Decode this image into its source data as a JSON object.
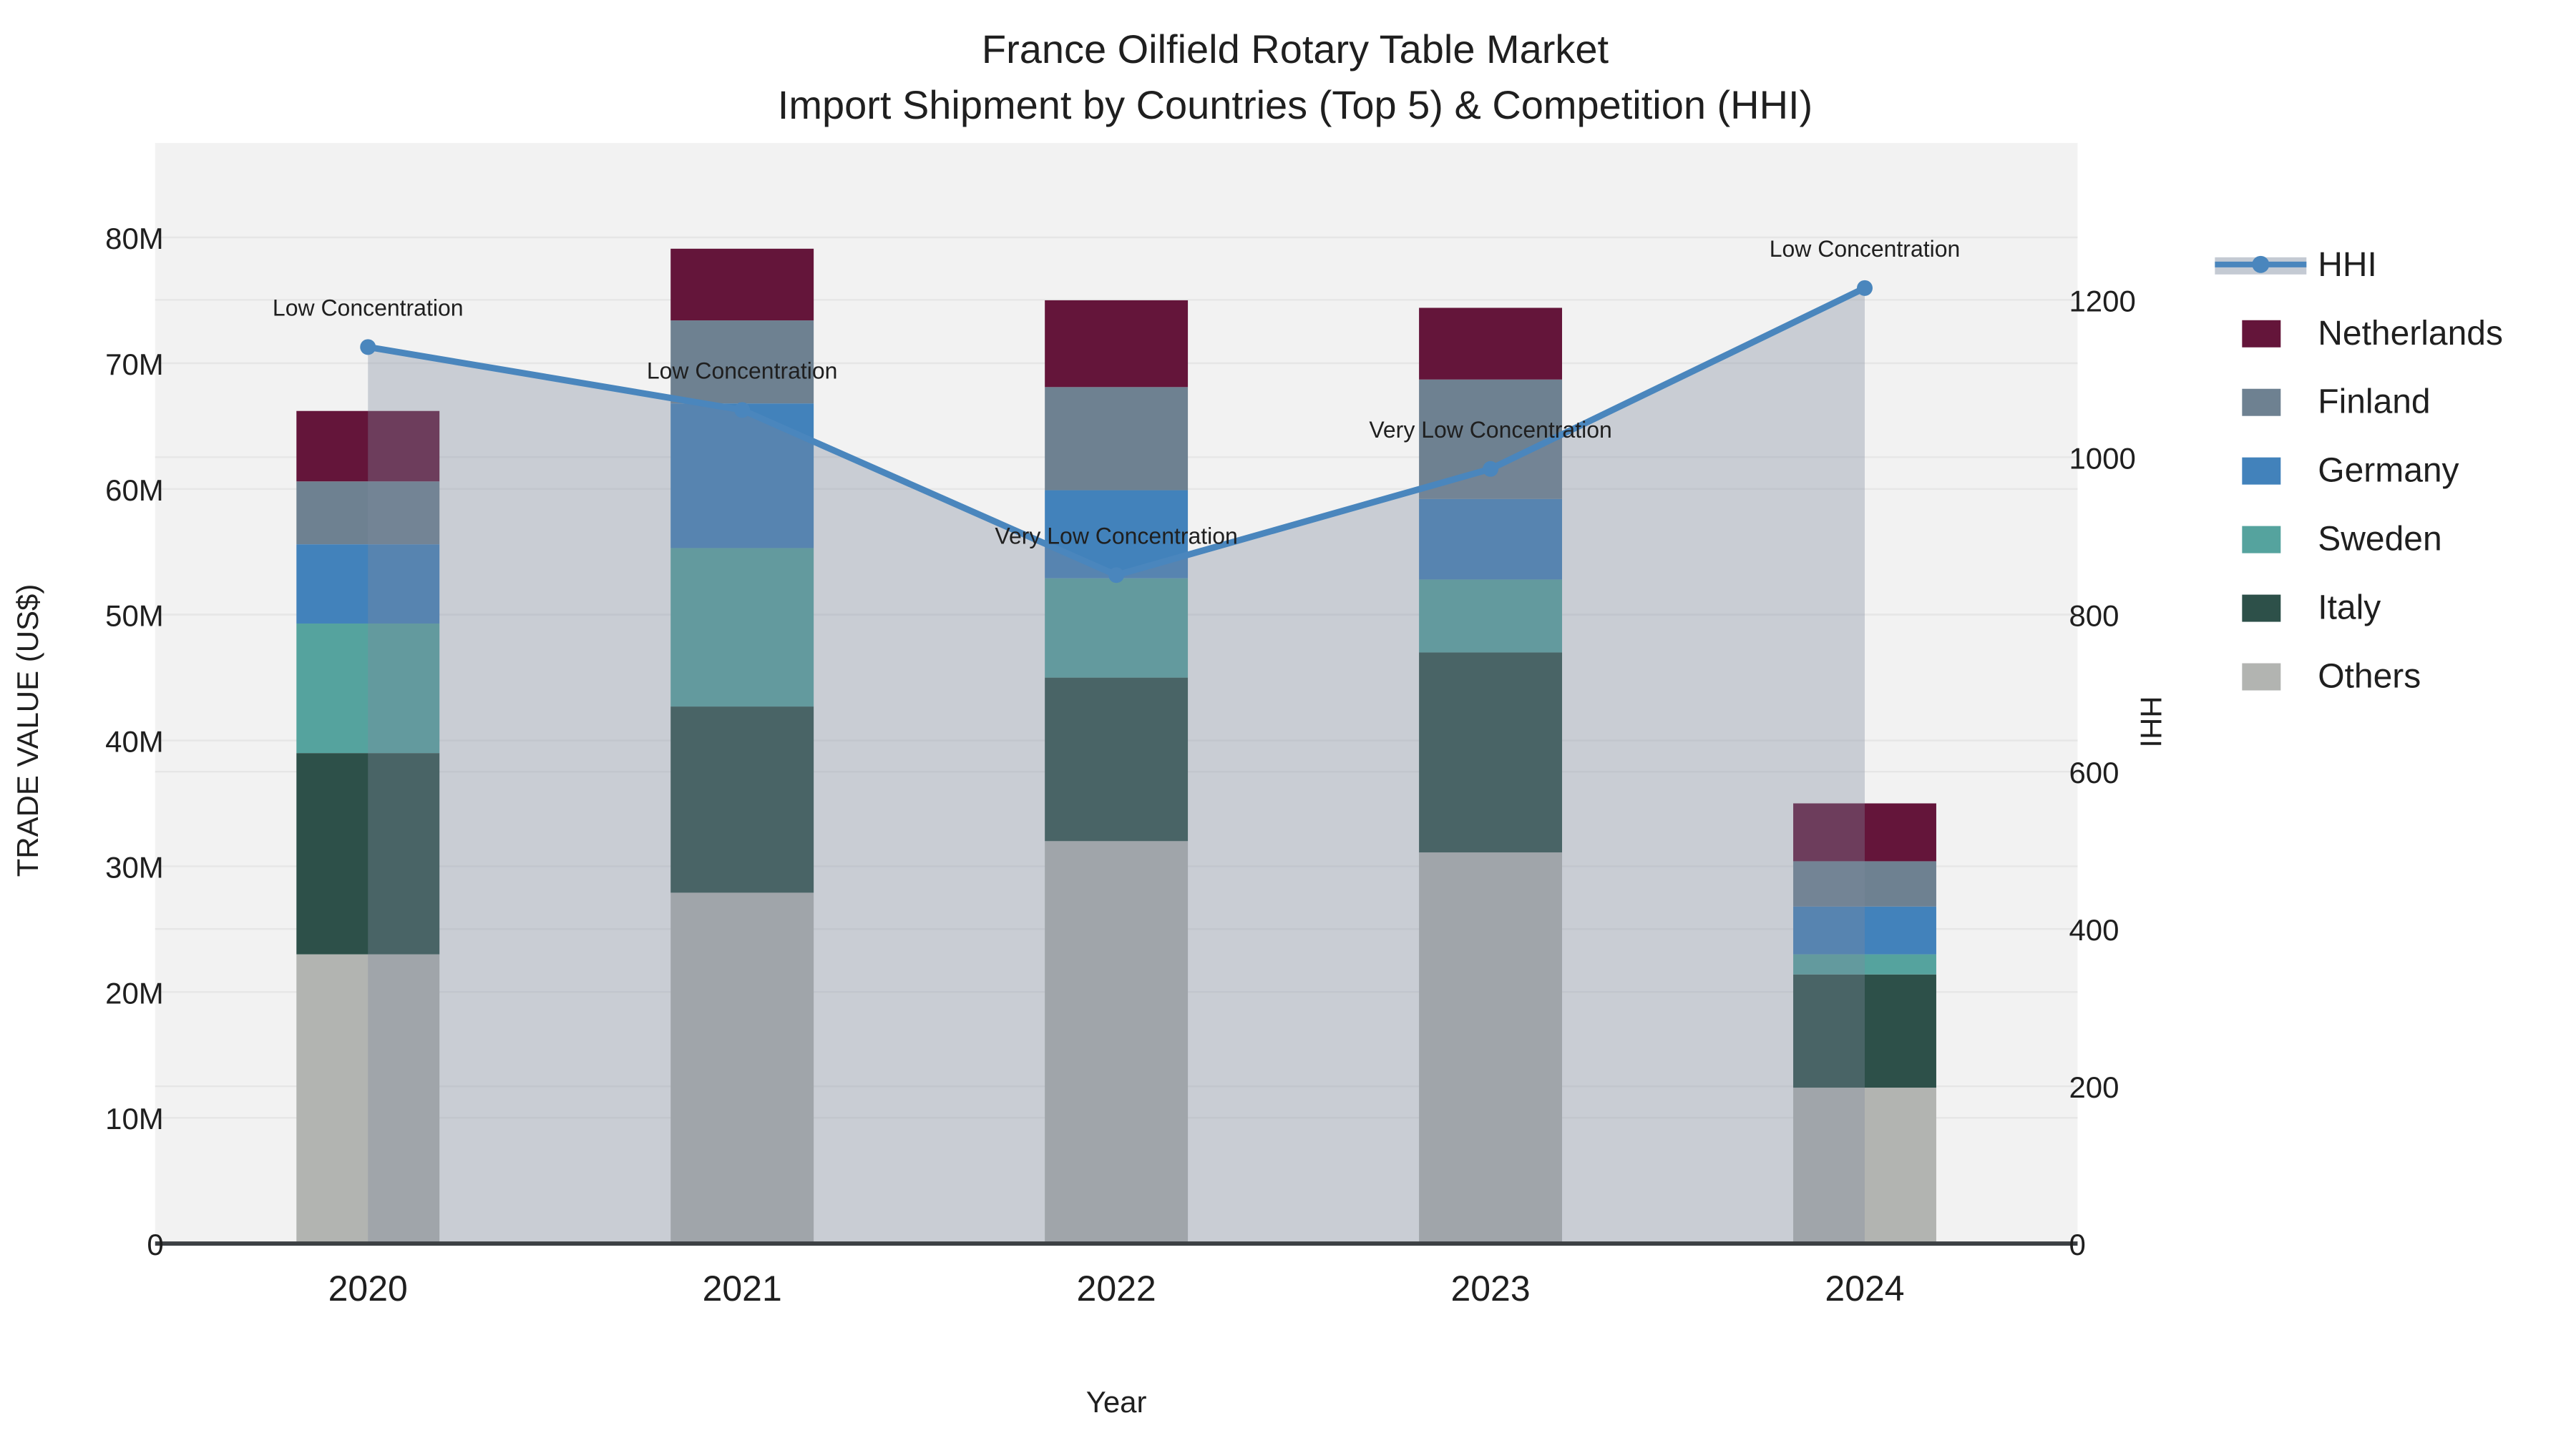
{
  "page": {
    "background": "#ffffff"
  },
  "chart_data": {
    "type": "bar",
    "subtype": "stacked-bar-with-line",
    "title_line1": "France Oilfield Rotary Table Market",
    "title_line2": "Import Shipment by Countries (Top 5) & Competition (HHI)",
    "xlabel": "Year",
    "ylabel_left": "TRADE VALUE (US$)",
    "ylabel_right": "HHI",
    "categories": [
      "2020",
      "2021",
      "2022",
      "2023",
      "2024"
    ],
    "series": [
      {
        "name": "Others",
        "color": "#b2b4b1",
        "values_musd": [
          23.0,
          27.9,
          32.0,
          31.1,
          12.4
        ]
      },
      {
        "name": "Italy",
        "color": "#2d5049",
        "values_musd": [
          16.0,
          14.8,
          13.0,
          15.9,
          9.0
        ]
      },
      {
        "name": "Sweden",
        "color": "#55a39e",
        "values_musd": [
          10.3,
          12.6,
          7.9,
          5.8,
          1.6
        ]
      },
      {
        "name": "Germany",
        "color": "#4282bb",
        "values_musd": [
          6.3,
          11.5,
          7.0,
          6.4,
          3.8
        ]
      },
      {
        "name": "Finland",
        "color": "#6e8191",
        "values_musd": [
          5.0,
          6.6,
          8.2,
          9.5,
          3.6
        ]
      },
      {
        "name": "Netherlands",
        "color": "#64153a",
        "values_musd": [
          5.6,
          5.7,
          6.9,
          5.7,
          4.6
        ]
      }
    ],
    "hhi_line": {
      "name": "HHI",
      "color": "#4a86bd",
      "area_fill_color": "#7d8a9e",
      "area_fill_opacity": 0.35,
      "values": [
        1140,
        1060,
        850,
        985,
        1215
      ]
    },
    "annotations": [
      {
        "category": "2020",
        "text": "Low Concentration"
      },
      {
        "category": "2021",
        "text": "Low Concentration"
      },
      {
        "category": "2022",
        "text": "Very Low Concentration"
      },
      {
        "category": "2023",
        "text": "Very Low Concentration"
      },
      {
        "category": "2024",
        "text": "Low Concentration"
      }
    ],
    "left_axis": {
      "tick_labels": [
        "0",
        "10M",
        "20M",
        "30M",
        "40M",
        "50M",
        "60M",
        "70M",
        "80M"
      ],
      "tick_values": [
        0,
        10,
        20,
        30,
        40,
        50,
        60,
        70,
        80
      ],
      "max": 81.6
    },
    "right_axis": {
      "tick_labels": [
        "0",
        "200",
        "400",
        "600",
        "800",
        "1000",
        "1200"
      ],
      "tick_values": [
        0,
        200,
        400,
        600,
        800,
        1000,
        1200
      ],
      "max": 1305
    },
    "legend_order": [
      "HHI",
      "Netherlands",
      "Finland",
      "Germany",
      "Sweden",
      "Italy",
      "Others"
    ],
    "colors": {
      "plot_background": "#f2f2f2",
      "grid": "#e6e6e6",
      "baseline": "#3c4043",
      "text": "#1f1f1f"
    }
  }
}
